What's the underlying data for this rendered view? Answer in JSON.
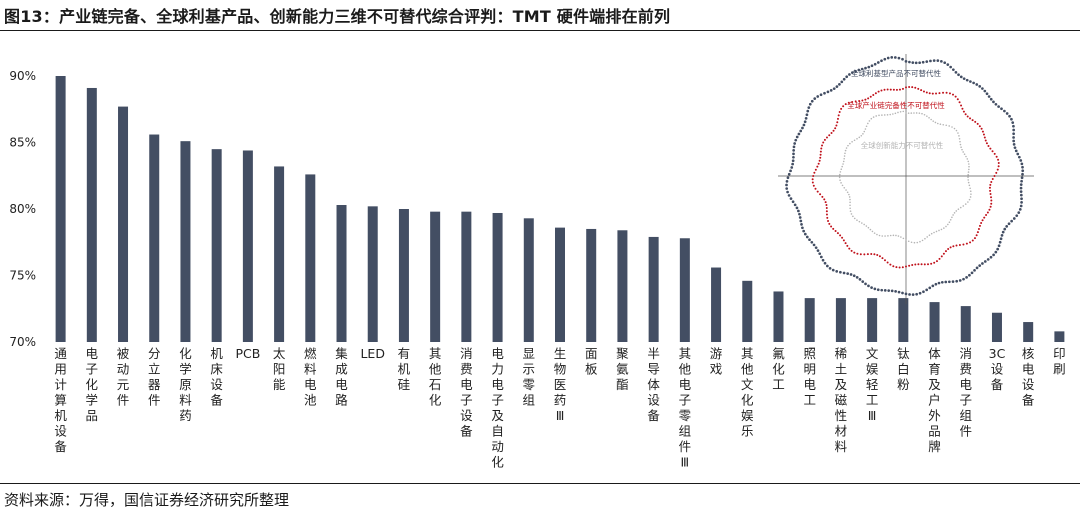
{
  "figure": {
    "title": "图13：产业链完备、全球利基产品、创新能力三维不可替代综合评判：TMT 硬件端排在前列",
    "source": "资料来源：万得，国信证券经济研究所整理"
  },
  "colors": {
    "bar": "#434e63",
    "ring_outer": "#434e63",
    "ring_middle": "#c0111b",
    "ring_inner": "#b4b4b4"
  },
  "chart_data": {
    "type": "bar",
    "ylim": [
      70,
      90
    ],
    "yticks": [
      70,
      75,
      80,
      85,
      90
    ],
    "ytick_labels": [
      "70%",
      "75%",
      "80%",
      "85%",
      "90%"
    ],
    "grid": false,
    "categories": [
      "通用计算机设备",
      "电子化学品",
      "被动元件",
      "分立器件",
      "化学原料药",
      "机床设备",
      "PCB",
      "太阳能",
      "燃料电池",
      "集成电路",
      "LED",
      "有机硅",
      "其他石化",
      "消费电子设备",
      "电力电子及自动化",
      "显示零组",
      "生物医药Ⅲ",
      "面板",
      "聚氨酯",
      "半导体设备",
      "其他电子零组件Ⅲ",
      "游戏",
      "其他文化娱乐",
      "氟化工",
      "照明电工",
      "稀土及磁性材料",
      "文娱轻工Ⅲ",
      "钛白粉",
      "体育及户外品牌",
      "消费电子组件",
      "3C设备",
      "核电设备",
      "印刷"
    ],
    "values": [
      90.0,
      89.1,
      87.7,
      85.6,
      85.1,
      84.5,
      84.4,
      83.2,
      82.6,
      80.3,
      80.2,
      80.0,
      79.8,
      79.8,
      79.7,
      79.3,
      78.6,
      78.5,
      78.4,
      77.9,
      77.8,
      75.6,
      74.6,
      73.8,
      73.3,
      73.3,
      73.3,
      73.3,
      73.0,
      72.7,
      72.2,
      71.5,
      70.8
    ],
    "inset": {
      "type": "radial-dot-rings",
      "rings": [
        {
          "label": "全球利基型产品不可替代性"
        },
        {
          "label": "全球产业链完备性不可替代性"
        },
        {
          "label": "全球创新能力不可替代性"
        }
      ]
    }
  }
}
